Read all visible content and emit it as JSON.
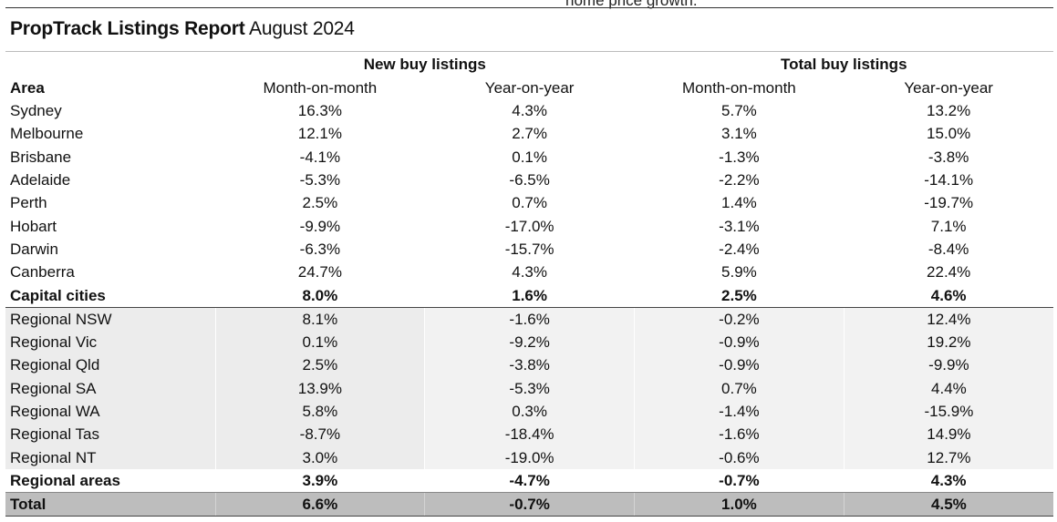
{
  "page": {
    "cutoff_text": "home price growth.",
    "title_bold": "PropTrack Listings Report",
    "title_rest": " August 2024"
  },
  "table": {
    "group_headers": [
      "New buy listings",
      "Total  buy listings"
    ],
    "area_header": "Area",
    "sub_headers": [
      "Month-on-month",
      "Year-on-year",
      "Month-on-month",
      "Year-on-year"
    ],
    "rows": [
      {
        "area": "Sydney",
        "values": [
          "16.3%",
          "4.3%",
          "5.7%",
          "13.2%"
        ]
      },
      {
        "area": "Melbourne",
        "values": [
          "12.1%",
          "2.7%",
          "3.1%",
          "15.0%"
        ]
      },
      {
        "area": "Brisbane",
        "values": [
          "-4.1%",
          "0.1%",
          "-1.3%",
          "-3.8%"
        ]
      },
      {
        "area": "Adelaide",
        "values": [
          "-5.3%",
          "-6.5%",
          "-2.2%",
          "-14.1%"
        ]
      },
      {
        "area": "Perth",
        "values": [
          "2.5%",
          "0.7%",
          "1.4%",
          "-19.7%"
        ]
      },
      {
        "area": "Hobart",
        "values": [
          "-9.9%",
          "-17.0%",
          "-3.1%",
          "7.1%"
        ]
      },
      {
        "area": "Darwin",
        "values": [
          "-6.3%",
          "-15.7%",
          "-2.4%",
          "-8.4%"
        ]
      },
      {
        "area": "Canberra",
        "values": [
          "24.7%",
          "4.3%",
          "5.9%",
          "22.4%"
        ]
      },
      {
        "area": "Capital cities",
        "values": [
          "8.0%",
          "1.6%",
          "2.5%",
          "4.6%"
        ]
      },
      {
        "area": "Regional NSW",
        "values": [
          "8.1%",
          "-1.6%",
          "-0.2%",
          "12.4%"
        ]
      },
      {
        "area": "Regional Vic",
        "values": [
          "0.1%",
          "-9.2%",
          "-0.9%",
          "19.2%"
        ]
      },
      {
        "area": "Regional Qld",
        "values": [
          "2.5%",
          "-3.8%",
          "-0.9%",
          "-9.9%"
        ]
      },
      {
        "area": "Regional SA",
        "values": [
          "13.9%",
          "-5.3%",
          "0.7%",
          "4.4%"
        ]
      },
      {
        "area": "Regional WA",
        "values": [
          "5.8%",
          "0.3%",
          "-1.4%",
          "-15.9%"
        ]
      },
      {
        "area": "Regional Tas",
        "values": [
          "-8.7%",
          "-18.4%",
          "-1.6%",
          "14.9%"
        ]
      },
      {
        "area": "Regional NT",
        "values": [
          "3.0%",
          "-19.0%",
          "-0.6%",
          "12.7%"
        ]
      },
      {
        "area": "Regional areas",
        "values": [
          "3.9%",
          "-4.7%",
          "-0.7%",
          "4.3%"
        ]
      },
      {
        "area": "Total",
        "values": [
          "6.6%",
          "-0.7%",
          "1.0%",
          "4.5%"
        ]
      }
    ]
  }
}
